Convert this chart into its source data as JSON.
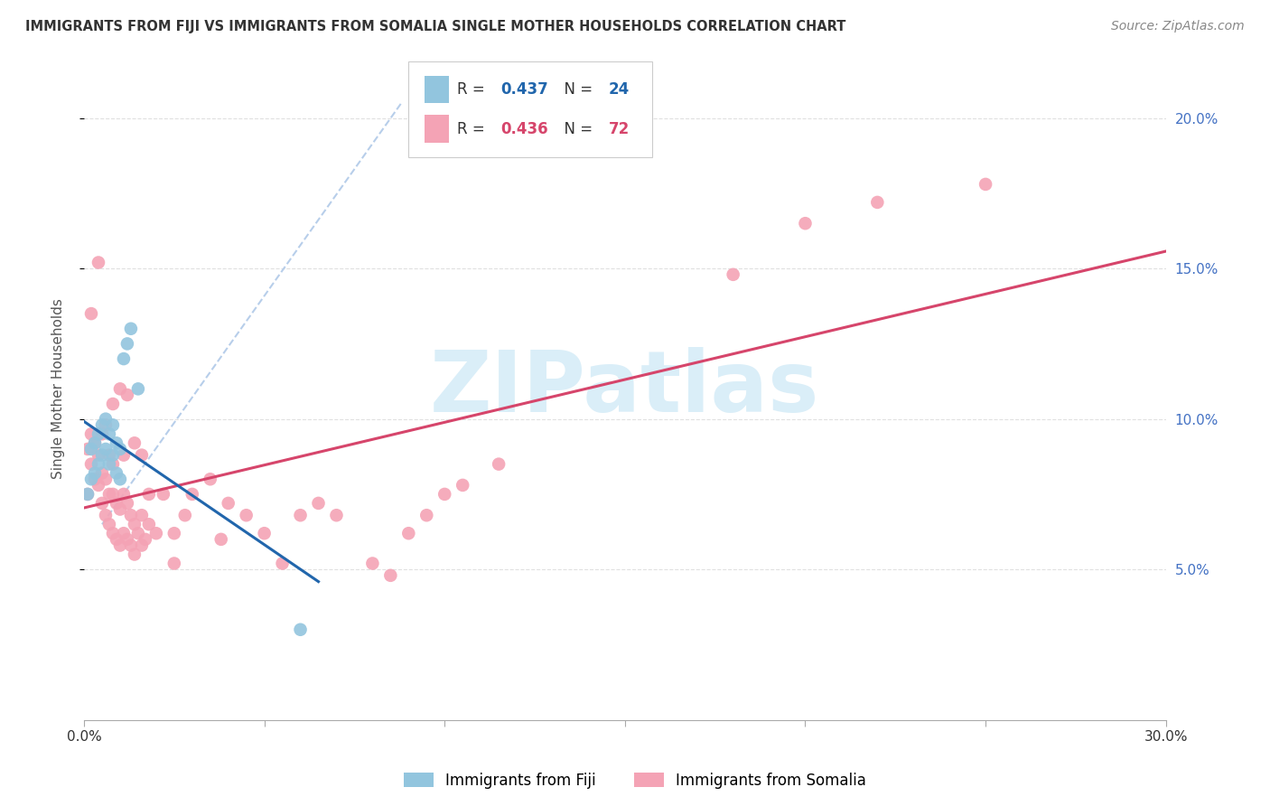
{
  "title": "IMMIGRANTS FROM FIJI VS IMMIGRANTS FROM SOMALIA SINGLE MOTHER HOUSEHOLDS CORRELATION CHART",
  "source": "Source: ZipAtlas.com",
  "ylabel": "Single Mother Households",
  "xlim": [
    0.0,
    0.3
  ],
  "ylim": [
    0.0,
    0.22
  ],
  "fiji_R": 0.437,
  "fiji_N": 24,
  "somalia_R": 0.436,
  "somalia_N": 72,
  "fiji_color": "#92c5de",
  "somalia_color": "#f4a3b5",
  "fiji_line_color": "#2166ac",
  "somalia_line_color": "#d6456b",
  "dashed_line_color": "#b0c9e8",
  "grid_color": "#cccccc",
  "watermark_text": "ZIPatlas",
  "watermark_color": "#daeef8",
  "title_color": "#333333",
  "right_axis_color": "#4472c4",
  "fiji_scatter_x": [
    0.001,
    0.002,
    0.002,
    0.003,
    0.003,
    0.004,
    0.004,
    0.005,
    0.005,
    0.006,
    0.006,
    0.007,
    0.007,
    0.008,
    0.008,
    0.009,
    0.009,
    0.01,
    0.01,
    0.011,
    0.012,
    0.013,
    0.06,
    0.015
  ],
  "fiji_scatter_y": [
    0.075,
    0.08,
    0.09,
    0.082,
    0.092,
    0.085,
    0.095,
    0.088,
    0.098,
    0.09,
    0.1,
    0.085,
    0.095,
    0.088,
    0.098,
    0.082,
    0.092,
    0.08,
    0.09,
    0.12,
    0.125,
    0.13,
    0.03,
    0.11
  ],
  "somalia_scatter_x": [
    0.001,
    0.001,
    0.002,
    0.002,
    0.003,
    0.003,
    0.004,
    0.004,
    0.005,
    0.005,
    0.005,
    0.006,
    0.006,
    0.007,
    0.007,
    0.007,
    0.008,
    0.008,
    0.008,
    0.009,
    0.009,
    0.01,
    0.01,
    0.011,
    0.011,
    0.011,
    0.012,
    0.012,
    0.013,
    0.013,
    0.014,
    0.014,
    0.015,
    0.016,
    0.016,
    0.017,
    0.018,
    0.018,
    0.02,
    0.022,
    0.025,
    0.025,
    0.028,
    0.03,
    0.035,
    0.038,
    0.04,
    0.045,
    0.05,
    0.055,
    0.06,
    0.065,
    0.07,
    0.08,
    0.085,
    0.09,
    0.095,
    0.1,
    0.105,
    0.115,
    0.18,
    0.2,
    0.22,
    0.25,
    0.002,
    0.004,
    0.006,
    0.008,
    0.01,
    0.012,
    0.014,
    0.016
  ],
  "somalia_scatter_y": [
    0.075,
    0.09,
    0.085,
    0.095,
    0.08,
    0.092,
    0.078,
    0.088,
    0.072,
    0.082,
    0.095,
    0.068,
    0.08,
    0.065,
    0.075,
    0.088,
    0.062,
    0.075,
    0.085,
    0.06,
    0.072,
    0.058,
    0.07,
    0.062,
    0.075,
    0.088,
    0.06,
    0.072,
    0.058,
    0.068,
    0.055,
    0.065,
    0.062,
    0.058,
    0.068,
    0.06,
    0.075,
    0.065,
    0.062,
    0.075,
    0.062,
    0.052,
    0.068,
    0.075,
    0.08,
    0.06,
    0.072,
    0.068,
    0.062,
    0.052,
    0.068,
    0.072,
    0.068,
    0.052,
    0.048,
    0.062,
    0.068,
    0.075,
    0.078,
    0.085,
    0.148,
    0.165,
    0.172,
    0.178,
    0.135,
    0.152,
    0.098,
    0.105,
    0.11,
    0.108,
    0.092,
    0.088
  ],
  "fiji_legend_label": "Immigrants from Fiji",
  "somalia_legend_label": "Immigrants from Somalia"
}
